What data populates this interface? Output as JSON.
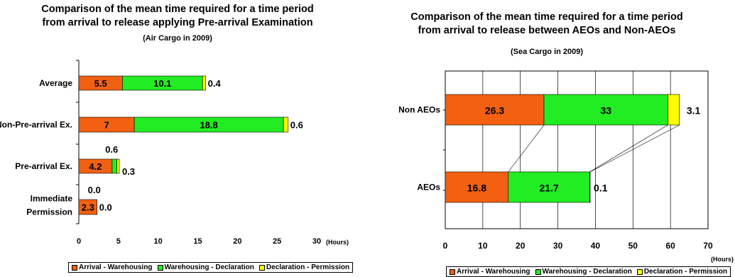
{
  "colors": {
    "arrival": "#f26011",
    "warehousing": "#22ec22",
    "declaration": "#fdfd00"
  },
  "chart_data": [
    {
      "type": "bar",
      "orientation": "horizontal",
      "stacked": true,
      "title_line1": "Comparison of the mean time required for a time period",
      "title_line2": "from arrival to release applying Pre-arrival Examination",
      "subtitle": "(Air Cargo in 2009)",
      "categories": [
        "Average",
        "Non-Pre-arrival Ex.",
        "Pre-arrival Ex.",
        "Immediate Permission"
      ],
      "series": [
        {
          "name": "Arrival - Warehousing",
          "values": [
            5.5,
            7,
            4.2,
            2.3
          ],
          "labels": [
            "5.5",
            "7",
            "4.2",
            "2.3"
          ]
        },
        {
          "name": "Warehousing - Declaration",
          "values": [
            10.1,
            18.8,
            0.6,
            0.0
          ],
          "labels": [
            "10.1",
            "18.8",
            "0.6",
            "0.0"
          ]
        },
        {
          "name": "Declaration - Permission",
          "values": [
            0.4,
            0.6,
            0.3,
            0.0
          ],
          "labels": [
            "0.4",
            "0.6",
            "0.3",
            "0.0"
          ]
        }
      ],
      "xlim": [
        0,
        30
      ],
      "xticks": [
        "0",
        "5",
        "10",
        "15",
        "20",
        "25",
        "30"
      ],
      "unit": "(Hours)",
      "legend_position": "bottom",
      "grid": false
    },
    {
      "type": "bar",
      "orientation": "horizontal",
      "stacked": true,
      "title_line1": "Comparison of the mean time required for a time period",
      "title_line2": "from arrival to release between AEOs and Non-AEOs",
      "subtitle": "(Sea Cargo in 2009)",
      "categories": [
        "Non AEOs",
        "AEOs"
      ],
      "series": [
        {
          "name": "Arrival - Warehousing",
          "values": [
            26.3,
            16.8
          ],
          "labels": [
            "26.3",
            "16.8"
          ]
        },
        {
          "name": "Warehousing - Declaration",
          "values": [
            33,
            21.7
          ],
          "labels": [
            "33",
            "21.7"
          ]
        },
        {
          "name": "Declaration - Permission",
          "values": [
            3.1,
            0.1
          ],
          "labels": [
            "3.1",
            "0.1"
          ]
        }
      ],
      "xlim": [
        0,
        70
      ],
      "xticks": [
        "0",
        "10",
        "20",
        "30",
        "40",
        "50",
        "60",
        "70"
      ],
      "unit": "(Hours)",
      "legend_position": "bottom",
      "grid": true
    }
  ]
}
